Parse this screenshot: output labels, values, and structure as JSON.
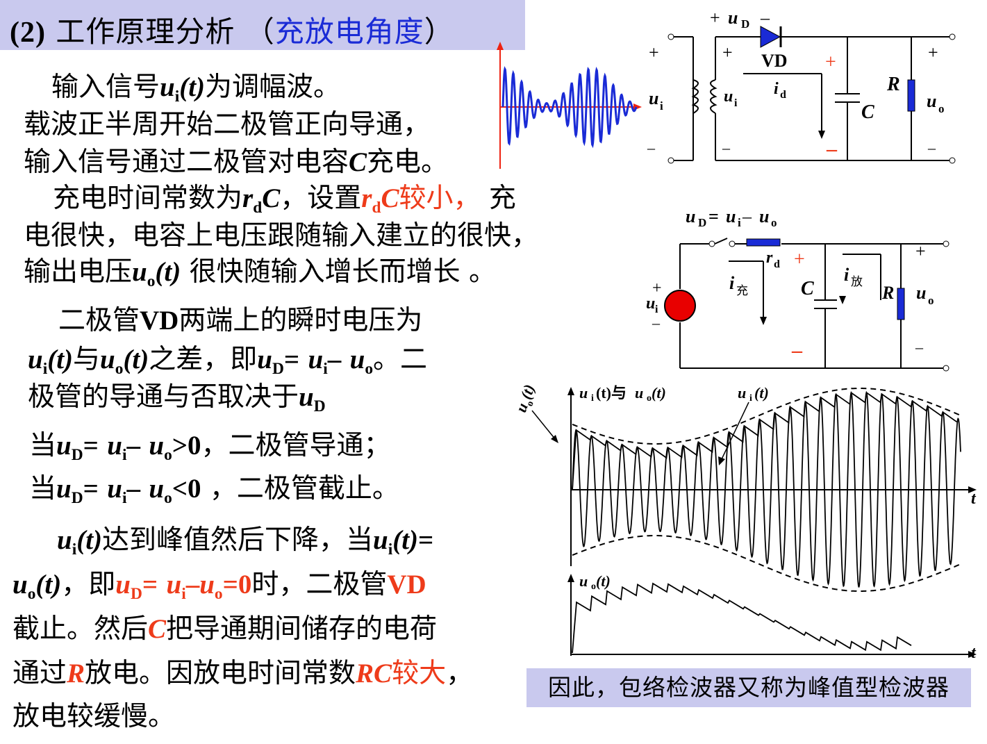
{
  "title": {
    "number": "(2)",
    "main": "工作原理分析",
    "paren_open": "（",
    "highlight": "充放电角度",
    "paren_close": "）"
  },
  "para1": {
    "l1": {
      "a": "输入信号",
      "u": "u",
      "sub": "i",
      "t": "(t)",
      "b": "为调幅波。"
    },
    "l2": "载波正半周开始二极管正向导通，",
    "l3": {
      "a": "输入信号通过二极管对电容",
      "C": "C",
      "b": "充电。"
    }
  },
  "para2": {
    "l1": {
      "a": "充电时间常数为",
      "r": "r",
      "rsub": "d",
      "C": "C",
      "b": "，设置",
      "red": "较小，",
      "c": "充"
    },
    "l2": "电很快，电容上电压跟随输入建立的很快，",
    "l3": {
      "a": "输出电压",
      "u": "u",
      "sub": "o",
      "t": "(t)",
      "b": " 很快随输入增长而增长 。"
    }
  },
  "para3": {
    "l1": {
      "a": "二极管",
      "vd": "VD",
      "b": "两端上的瞬时电压为"
    },
    "l2": {
      "and": "与",
      "zhi": "之差，即",
      "eq": "=",
      "minus": "–",
      "end": "。二"
    },
    "l3": {
      "a": "极管的导通与否取决于"
    }
  },
  "cond": {
    "c1": {
      "dang": "当",
      "cmp": ">0",
      "res": "，二极管导通；"
    },
    "c2": {
      "dang": "当",
      "cmp": "<0",
      "res": " ，二极管截止。"
    }
  },
  "para4": {
    "l1": {
      "a": "达到峰值然后下降，当",
      "eq": "="
    },
    "l2": {
      "a": "，即",
      "eq0": "=0",
      "b": "时，二极管",
      "vd": "VD"
    },
    "l3": {
      "a": "截止。然后",
      "C": "C",
      "b": "把导通期间储存的电荷"
    },
    "l4": {
      "a": "通过",
      "R": "R",
      "b": "放电。因放电时间常数",
      "RC": "RC",
      "red": "较大",
      "c": "，"
    },
    "l5": "放电较缓慢。"
  },
  "sym": {
    "u": "u",
    "i": "i",
    "o": "o",
    "D": "D",
    "t": "(t)"
  },
  "circuit1": {
    "uD": "u",
    "uD_sub": "D",
    "plus": "+",
    "minus": "–",
    "VD": "VD",
    "ui": "u",
    "ui_sub": "i",
    "id": "i",
    "id_sub": "d",
    "C": "C",
    "R": "R",
    "uo": "u",
    "uo_sub": "o"
  },
  "circuit2": {
    "formula": "u",
    "rd": "r",
    "rd_sub": "d",
    "ichong": "i",
    "ichong_sub": "充",
    "ifang": "i",
    "ifang_sub": "放",
    "C": "C",
    "R": "R"
  },
  "waveform": {
    "ylabel": "u",
    "ylabel_sub": "o",
    "ylabel_t": "(t)",
    "label_both": "u",
    "label_both_mid": "(t)与",
    "label_both_end": "(t)",
    "label_ui": "u",
    "label_ui_t": "(t)",
    "t_axis": "t"
  },
  "output_wave": {
    "ylabel": "u",
    "ylabel_sub": "o",
    "ylabel_t": "(t)",
    "t_axis": "t"
  },
  "conclusion": "因此，包络检波器又称为峰值型检波器"
}
